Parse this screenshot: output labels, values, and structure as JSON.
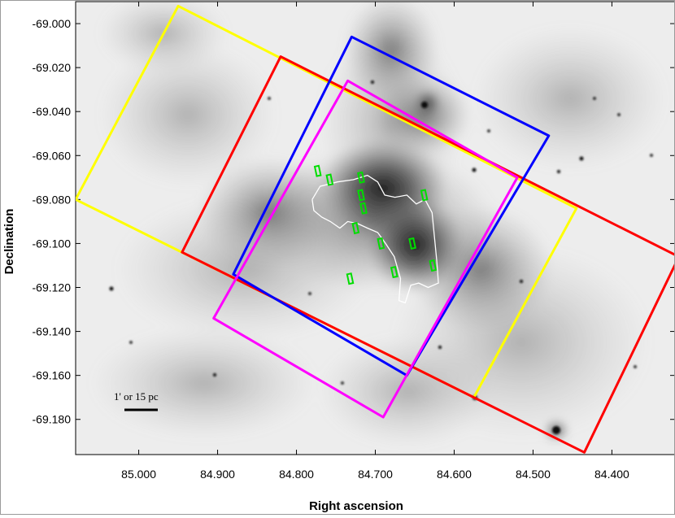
{
  "chart_data": {
    "type": "scatter",
    "xlabel": "Right ascension",
    "ylabel": "Declination",
    "xlim": [
      85.08,
      84.32
    ],
    "ylim": [
      -69.196,
      -68.99
    ],
    "x_reversed": true,
    "x_ticks": [
      {
        "value": 85.0,
        "label": "85.000"
      },
      {
        "value": 84.9,
        "label": "84.900"
      },
      {
        "value": 84.8,
        "label": "84.800"
      },
      {
        "value": 84.7,
        "label": "84.700"
      },
      {
        "value": 84.6,
        "label": "84.600"
      },
      {
        "value": 84.5,
        "label": "84.500"
      },
      {
        "value": 84.4,
        "label": "84.400"
      }
    ],
    "y_ticks": [
      {
        "value": -69.0,
        "label": "-69.000"
      },
      {
        "value": -69.02,
        "label": "-69.020"
      },
      {
        "value": -69.04,
        "label": "-69.040"
      },
      {
        "value": -69.06,
        "label": "-69.060"
      },
      {
        "value": -69.08,
        "label": "-69.080"
      },
      {
        "value": -69.1,
        "label": "-69.100"
      },
      {
        "value": -69.12,
        "label": "-69.120"
      },
      {
        "value": -69.14,
        "label": "-69.140"
      },
      {
        "value": -69.16,
        "label": "-69.160"
      },
      {
        "value": -69.18,
        "label": "-69.180"
      }
    ],
    "background": "grayscale nebula image",
    "footprints": [
      {
        "color": "#ffff00",
        "corners": [
          [
            84.95,
            -68.992
          ],
          [
            85.08,
            -69.08
          ],
          [
            84.575,
            -69.17
          ],
          [
            84.445,
            -69.084
          ]
        ]
      },
      {
        "color": "#ff0000",
        "corners": [
          [
            84.82,
            -69.015
          ],
          [
            84.945,
            -69.104
          ],
          [
            84.435,
            -69.195
          ],
          [
            84.315,
            -69.106
          ]
        ]
      },
      {
        "color": "#0000ff",
        "corners": [
          [
            84.73,
            -69.006
          ],
          [
            84.88,
            -69.114
          ],
          [
            84.66,
            -69.16
          ],
          [
            84.48,
            -69.051
          ]
        ]
      },
      {
        "color": "#ff00ff",
        "corners": [
          [
            84.735,
            -69.026
          ],
          [
            84.905,
            -69.134
          ],
          [
            84.69,
            -69.179
          ],
          [
            84.52,
            -69.07
          ]
        ]
      }
    ],
    "green_markers": [
      [
        84.773,
        -69.067
      ],
      [
        84.758,
        -69.071
      ],
      [
        84.718,
        -69.07
      ],
      [
        84.718,
        -69.078
      ],
      [
        84.715,
        -69.084
      ],
      [
        84.638,
        -69.078
      ],
      [
        84.725,
        -69.093
      ],
      [
        84.693,
        -69.1
      ],
      [
        84.653,
        -69.1
      ],
      [
        84.676,
        -69.113
      ],
      [
        84.627,
        -69.11
      ],
      [
        84.732,
        -69.116
      ]
    ],
    "contour_color": "#ffffff",
    "contour": [
      [
        84.78,
        -69.08
      ],
      [
        84.77,
        -69.074
      ],
      [
        84.748,
        -69.072
      ],
      [
        84.728,
        -69.071
      ],
      [
        84.71,
        -69.069
      ],
      [
        84.697,
        -69.072
      ],
      [
        84.688,
        -69.078
      ],
      [
        84.675,
        -69.079
      ],
      [
        84.66,
        -69.078
      ],
      [
        84.648,
        -69.082
      ],
      [
        84.637,
        -69.08
      ],
      [
        84.628,
        -69.086
      ],
      [
        84.625,
        -69.097
      ],
      [
        84.622,
        -69.108
      ],
      [
        84.62,
        -69.118
      ],
      [
        84.633,
        -69.12
      ],
      [
        84.645,
        -69.118
      ],
      [
        84.655,
        -69.119
      ],
      [
        84.662,
        -69.127
      ],
      [
        84.67,
        -69.126
      ],
      [
        84.668,
        -69.116
      ],
      [
        84.676,
        -69.106
      ],
      [
        84.687,
        -69.1
      ],
      [
        84.697,
        -69.095
      ],
      [
        84.71,
        -69.093
      ],
      [
        84.722,
        -69.091
      ],
      [
        84.735,
        -69.09
      ],
      [
        84.745,
        -69.093
      ],
      [
        84.757,
        -69.09
      ],
      [
        84.768,
        -69.088
      ],
      [
        84.778,
        -69.085
      ],
      [
        84.78,
        -69.08
      ]
    ],
    "scale_bar": {
      "label": "1' or 15 pc"
    }
  }
}
